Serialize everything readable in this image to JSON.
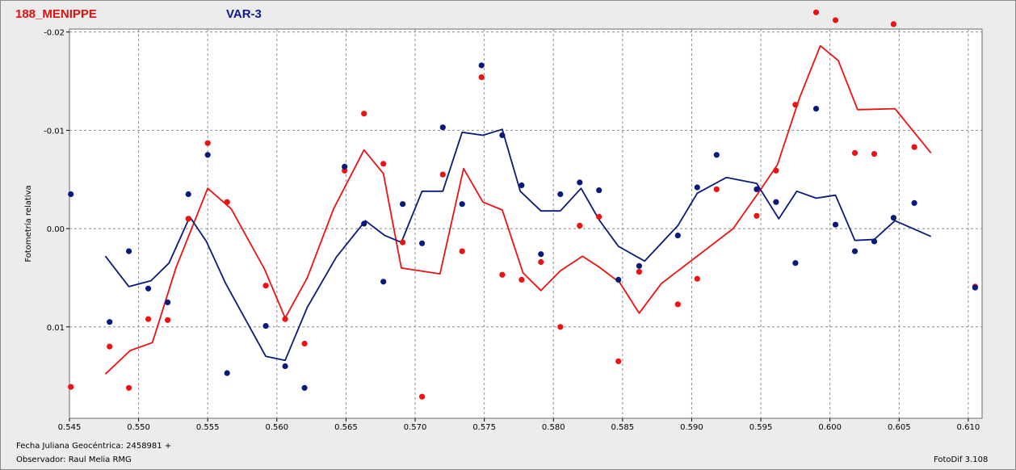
{
  "header": {
    "object_name": "188_MENIPPE",
    "comparison_label": "VAR-3"
  },
  "footer": {
    "date_line": "Fecha Juliana Geocéntrica: 2458981 +",
    "observer_line": "Observador: Raul Melia RMG",
    "software": "FotoDif 3.108"
  },
  "colors": {
    "red_series": "#ee1111",
    "blue_series": "#0a1a7a",
    "grid": "#8c8c8c",
    "plot_bg": "#ffffff",
    "page_bg": "#ececec"
  },
  "chart_data": {
    "type": "scatter",
    "ylabel": "Fotometría relativa",
    "y_inverted": true,
    "xlim": [
      0.545,
      0.611
    ],
    "ylim": [
      -0.0203,
      0.0193
    ],
    "grid": true,
    "x_ticks": [
      "0.545",
      "0.550",
      "0.555",
      "0.560",
      "0.565",
      "0.570",
      "0.575",
      "0.580",
      "0.585",
      "0.590",
      "0.595",
      "0.600",
      "0.605",
      "0.610"
    ],
    "x_tick_values": [
      0.545,
      0.55,
      0.555,
      0.56,
      0.565,
      0.57,
      0.575,
      0.58,
      0.585,
      0.59,
      0.595,
      0.6,
      0.605,
      0.61
    ],
    "y_ticks": [
      "-0.02",
      "-0.01",
      "0.00",
      "0.01"
    ],
    "y_tick_values": [
      -0.02,
      -0.01,
      0.0,
      0.01
    ],
    "series": [
      {
        "color": "#ee1111",
        "points": [
          [
            0.5451,
            0.0161
          ],
          [
            0.5479,
            0.012
          ],
          [
            0.5493,
            0.0162
          ],
          [
            0.5507,
            0.0092
          ],
          [
            0.5521,
            0.0093
          ],
          [
            0.5536,
            -0.001
          ],
          [
            0.555,
            -0.0087
          ],
          [
            0.5564,
            -0.0027
          ],
          [
            0.5592,
            0.0058
          ],
          [
            0.5606,
            0.0092
          ],
          [
            0.562,
            0.0117
          ],
          [
            0.5649,
            -0.0059
          ],
          [
            0.5663,
            -0.0117
          ],
          [
            0.5677,
            -0.0066
          ],
          [
            0.5691,
            0.0014
          ],
          [
            0.5705,
            0.0171
          ],
          [
            0.572,
            -0.0055
          ],
          [
            0.5734,
            0.0023
          ],
          [
            0.5748,
            -0.0154
          ],
          [
            0.5763,
            0.0047
          ],
          [
            0.5777,
            0.0052
          ],
          [
            0.5791,
            0.0034
          ],
          [
            0.5805,
            0.01
          ],
          [
            0.5819,
            -0.0003
          ],
          [
            0.5833,
            -0.0012
          ],
          [
            0.5847,
            0.0135
          ],
          [
            0.5862,
            0.0044
          ],
          [
            0.589,
            0.0077
          ],
          [
            0.5904,
            0.0051
          ],
          [
            0.5918,
            -0.004
          ],
          [
            0.5947,
            -0.0013
          ],
          [
            0.5961,
            -0.0059
          ],
          [
            0.5975,
            -0.0126
          ],
          [
            0.599,
            -0.022
          ],
          [
            0.6004,
            -0.0212
          ],
          [
            0.6018,
            -0.0077
          ],
          [
            0.6032,
            -0.0076
          ],
          [
            0.6046,
            -0.0208
          ],
          [
            0.6061,
            -0.0083
          ],
          [
            0.6105,
            0.0059
          ]
        ],
        "trend": [
          [
            0.5476,
            0.0148
          ],
          [
            0.5494,
            0.0124
          ],
          [
            0.551,
            0.0116
          ],
          [
            0.5527,
            0.004
          ],
          [
            0.555,
            -0.0041
          ],
          [
            0.5567,
            -0.002
          ],
          [
            0.5591,
            0.0041
          ],
          [
            0.5606,
            0.0091
          ],
          [
            0.5622,
            0.005
          ],
          [
            0.5641,
            -0.002
          ],
          [
            0.5663,
            -0.008
          ],
          [
            0.5677,
            -0.0056
          ],
          [
            0.569,
            0.004
          ],
          [
            0.5718,
            0.0046
          ],
          [
            0.5735,
            -0.0061
          ],
          [
            0.5749,
            -0.0027
          ],
          [
            0.5763,
            -0.0019
          ],
          [
            0.5778,
            0.0045
          ],
          [
            0.5791,
            0.0063
          ],
          [
            0.5805,
            0.0043
          ],
          [
            0.5821,
            0.0028
          ],
          [
            0.5833,
            0.0039
          ],
          [
            0.5848,
            0.0055
          ],
          [
            0.5862,
            0.0086
          ],
          [
            0.5878,
            0.0056
          ],
          [
            0.5905,
            0.0027
          ],
          [
            0.593,
            0.0
          ],
          [
            0.595,
            -0.004
          ],
          [
            0.5962,
            -0.0065
          ],
          [
            0.5978,
            -0.0133
          ],
          [
            0.5993,
            -0.0186
          ],
          [
            0.6006,
            -0.0171
          ],
          [
            0.602,
            -0.0121
          ],
          [
            0.6047,
            -0.0122
          ],
          [
            0.6073,
            -0.0077
          ]
        ]
      },
      {
        "color": "#0a1a7a",
        "points": [
          [
            0.5451,
            -0.0035
          ],
          [
            0.5479,
            0.0095
          ],
          [
            0.5493,
            0.0023
          ],
          [
            0.5507,
            0.0061
          ],
          [
            0.5521,
            0.0075
          ],
          [
            0.5536,
            -0.0035
          ],
          [
            0.555,
            -0.0075
          ],
          [
            0.5564,
            0.0147
          ],
          [
            0.5592,
            0.0099
          ],
          [
            0.5606,
            0.014
          ],
          [
            0.562,
            0.0162
          ],
          [
            0.5649,
            -0.0063
          ],
          [
            0.5663,
            -0.0005
          ],
          [
            0.5677,
            0.0054
          ],
          [
            0.5691,
            -0.0025
          ],
          [
            0.5705,
            0.0015
          ],
          [
            0.572,
            -0.0103
          ],
          [
            0.5734,
            -0.0025
          ],
          [
            0.5748,
            -0.0166
          ],
          [
            0.5763,
            -0.0095
          ],
          [
            0.5777,
            -0.0044
          ],
          [
            0.5791,
            0.0026
          ],
          [
            0.5805,
            -0.0035
          ],
          [
            0.5819,
            -0.0047
          ],
          [
            0.5833,
            -0.0039
          ],
          [
            0.5847,
            0.0052
          ],
          [
            0.5862,
            0.0038
          ],
          [
            0.589,
            0.0007
          ],
          [
            0.5904,
            -0.0042
          ],
          [
            0.5918,
            -0.0075
          ],
          [
            0.5947,
            -0.004
          ],
          [
            0.5961,
            -0.0027
          ],
          [
            0.5975,
            0.0035
          ],
          [
            0.599,
            -0.0122
          ],
          [
            0.6004,
            -0.0004
          ],
          [
            0.6018,
            0.0023
          ],
          [
            0.6032,
            0.0013
          ],
          [
            0.6046,
            -0.0011
          ],
          [
            0.6061,
            -0.0026
          ],
          [
            0.6105,
            0.006
          ]
        ],
        "trend": [
          [
            0.5476,
            0.0028
          ],
          [
            0.5493,
            0.0059
          ],
          [
            0.5509,
            0.0053
          ],
          [
            0.5522,
            0.0035
          ],
          [
            0.5537,
            -0.0012
          ],
          [
            0.5549,
            0.0013
          ],
          [
            0.5563,
            0.0056
          ],
          [
            0.5592,
            0.013
          ],
          [
            0.5606,
            0.0134
          ],
          [
            0.5622,
            0.008
          ],
          [
            0.5643,
            0.0029
          ],
          [
            0.5664,
            -0.0008
          ],
          [
            0.5678,
            0.0007
          ],
          [
            0.569,
            0.0014
          ],
          [
            0.5705,
            -0.0038
          ],
          [
            0.572,
            -0.0038
          ],
          [
            0.5734,
            -0.0098
          ],
          [
            0.5749,
            -0.0095
          ],
          [
            0.5763,
            -0.0101
          ],
          [
            0.5776,
            -0.0038
          ],
          [
            0.5791,
            -0.0018
          ],
          [
            0.5805,
            -0.0018
          ],
          [
            0.582,
            -0.0041
          ],
          [
            0.5833,
            -0.0009
          ],
          [
            0.5847,
            0.0018
          ],
          [
            0.5866,
            0.0033
          ],
          [
            0.589,
            -0.0003
          ],
          [
            0.5904,
            -0.0036
          ],
          [
            0.5925,
            -0.0052
          ],
          [
            0.5947,
            -0.0046
          ],
          [
            0.5963,
            -0.001
          ],
          [
            0.5976,
            -0.0038
          ],
          [
            0.599,
            -0.0031
          ],
          [
            0.6004,
            -0.0034
          ],
          [
            0.6018,
            0.0012
          ],
          [
            0.6032,
            0.0011
          ],
          [
            0.6047,
            -0.0008
          ],
          [
            0.6073,
            0.0008
          ]
        ]
      }
    ]
  }
}
